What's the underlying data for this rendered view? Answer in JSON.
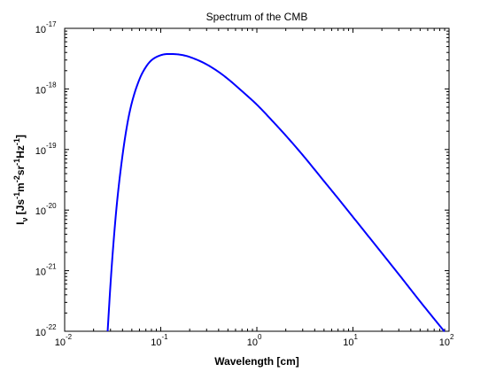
{
  "chart_data": {
    "type": "line",
    "title": "Spectrum of the CMB",
    "xlabel": "Wavelength [cm]",
    "ylabel": {
      "segments": [
        {
          "text": "I",
          "shift": "base"
        },
        {
          "text": "ν",
          "shift": "sub"
        },
        {
          "text": " [Js",
          "shift": "base"
        },
        {
          "text": "-1",
          "shift": "sup"
        },
        {
          "text": "m",
          "shift": "base"
        },
        {
          "text": "-2",
          "shift": "sup"
        },
        {
          "text": "sr",
          "shift": "base"
        },
        {
          "text": "-1",
          "shift": "sup"
        },
        {
          "text": "Hz",
          "shift": "base"
        },
        {
          "text": "-1",
          "shift": "sup"
        },
        {
          "text": "]",
          "shift": "base"
        }
      ]
    },
    "xscale": "log",
    "yscale": "log",
    "xlim": [
      0.01,
      100
    ],
    "ylim": [
      1e-22,
      1e-17
    ],
    "xticks": [
      {
        "value": 0.01,
        "base": "10",
        "exp": "-2"
      },
      {
        "value": 0.1,
        "base": "10",
        "exp": "-1"
      },
      {
        "value": 1,
        "base": "10",
        "exp": "0"
      },
      {
        "value": 10,
        "base": "10",
        "exp": "1"
      },
      {
        "value": 100,
        "base": "10",
        "exp": "2"
      }
    ],
    "yticks": [
      {
        "value": 1e-22,
        "base": "10",
        "exp": "-22"
      },
      {
        "value": 1e-21,
        "base": "10",
        "exp": "-21"
      },
      {
        "value": 1e-20,
        "base": "10",
        "exp": "-20"
      },
      {
        "value": 1e-19,
        "base": "10",
        "exp": "-19"
      },
      {
        "value": 1e-18,
        "base": "10",
        "exp": "-18"
      },
      {
        "value": 1e-17,
        "base": "10",
        "exp": "-17"
      }
    ],
    "grid": false,
    "series": [
      {
        "color": "#0000ff",
        "x": [
          0.028,
          0.03,
          0.032,
          0.035,
          0.04,
          0.045,
          0.05,
          0.06,
          0.07,
          0.08,
          0.1,
          0.12,
          0.15,
          0.18,
          0.2,
          0.25,
          0.3,
          0.4,
          0.5,
          0.7,
          1,
          1.5,
          2,
          3,
          5,
          7,
          10,
          15,
          20,
          30,
          50,
          70,
          90
        ],
        "y": [
          1e-22,
          6e-22,
          2.5e-21,
          1.3e-20,
          8e-20,
          2.7e-19,
          5.9e-19,
          1.44e-18,
          2.3e-18,
          2.97e-18,
          3.6e-18,
          3.77e-18,
          3.72e-18,
          3.54e-18,
          3.37e-18,
          2.93e-18,
          2.54e-18,
          1.91e-18,
          1.46e-18,
          9.2e-19,
          5.5e-19,
          2.8e-19,
          1.7e-19,
          8.1e-20,
          3e-20,
          1.56e-20,
          7.7e-21,
          3.45e-21,
          1.95e-21,
          8.7e-22,
          3.1e-22,
          1.6e-22,
          9.8e-23
        ]
      }
    ]
  }
}
